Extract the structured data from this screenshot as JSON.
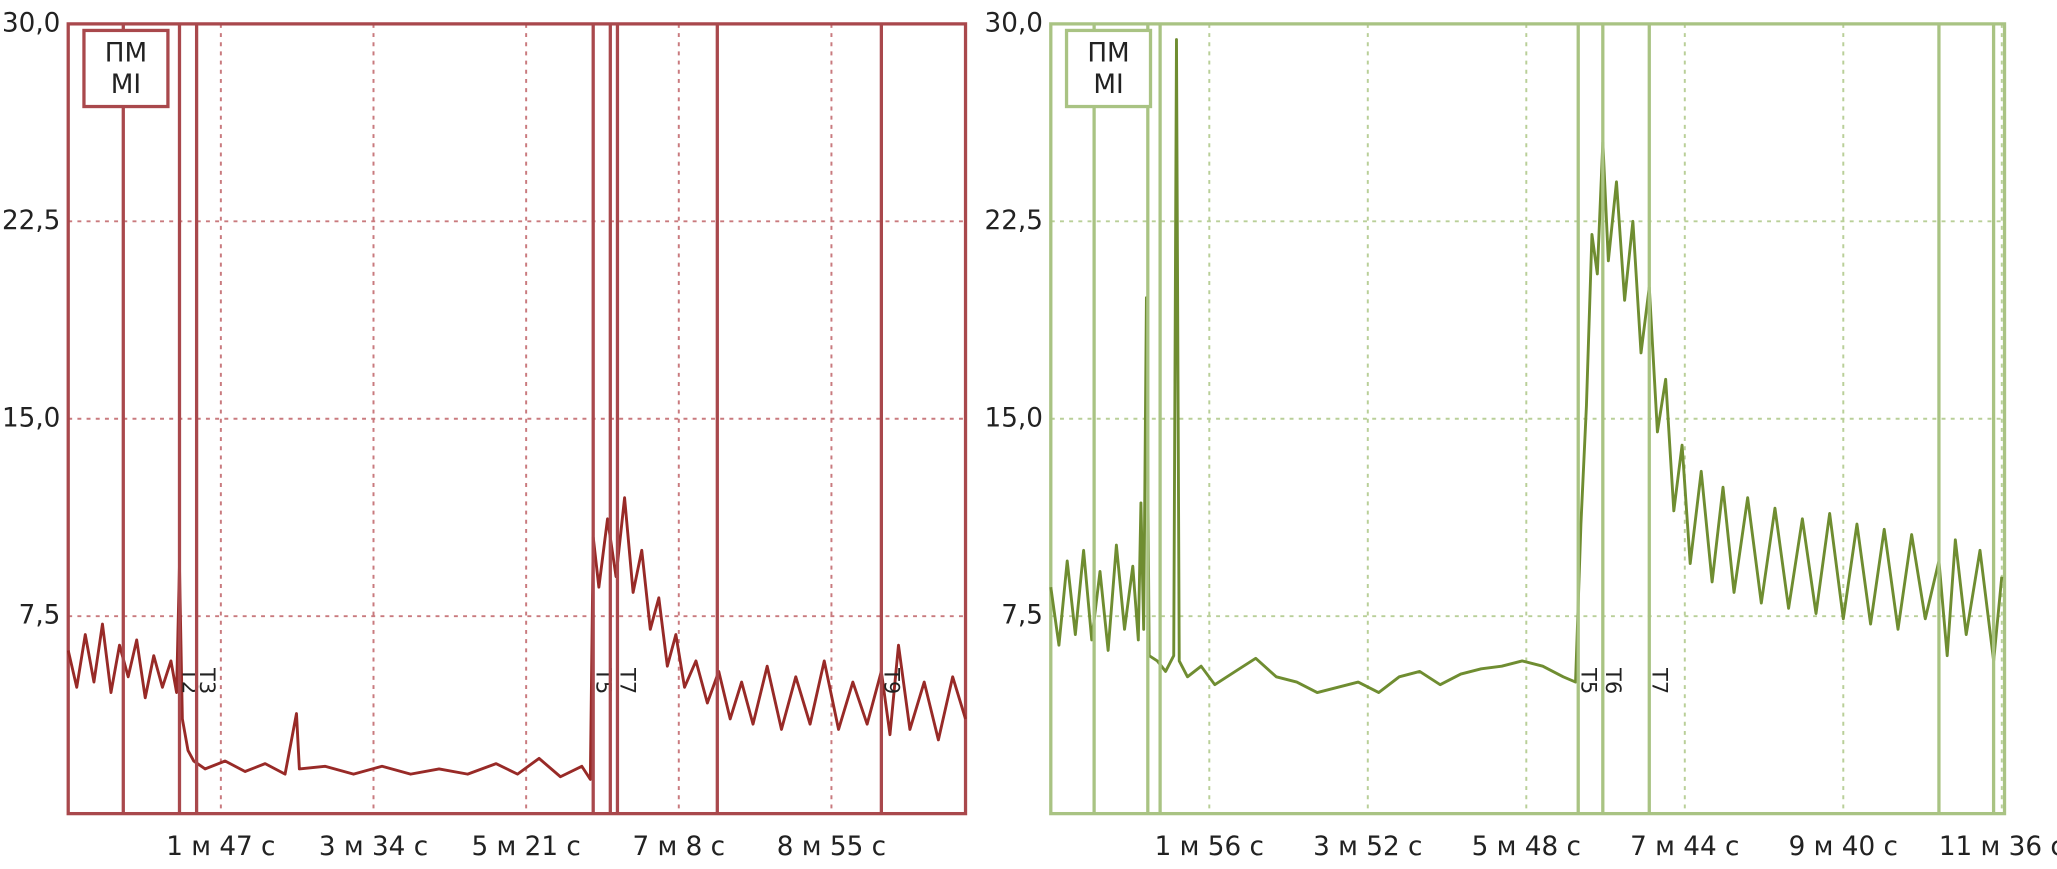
{
  "chart_data": [
    {
      "type": "line",
      "legend": [
        "ПМ",
        "MI"
      ],
      "frame_color": "#a9484c",
      "grid_color": "#c97a7e",
      "xlim": [
        0,
        629
      ],
      "ylim": [
        0,
        30
      ],
      "xticks": [
        {
          "value": 107,
          "label": "1 м 47 с"
        },
        {
          "value": 214,
          "label": "3 м 34 с"
        },
        {
          "value": 321,
          "label": "5 м 21 с"
        },
        {
          "value": 428,
          "label": "7 м 8 с"
        },
        {
          "value": 535,
          "label": "8 м 55 с"
        }
      ],
      "yticks": [
        {
          "value": 7.5,
          "label": "7,5"
        },
        {
          "value": 15,
          "label": "15,0"
        },
        {
          "value": 22.5,
          "label": "22,5"
        },
        {
          "value": 30,
          "label": "30,0"
        }
      ],
      "grid": true,
      "markers": [
        {
          "x": 38.6
        },
        {
          "x": 78,
          "label": "T2"
        },
        {
          "x": 90,
          "label": "T3"
        },
        {
          "x": 368,
          "label": "T5"
        },
        {
          "x": 380
        },
        {
          "x": 385,
          "label": "T7"
        },
        {
          "x": 455
        },
        {
          "x": 570,
          "label": "T9"
        }
      ],
      "x": [
        0,
        6,
        12,
        18,
        24,
        30,
        36,
        42,
        48,
        54,
        60,
        66,
        72,
        76,
        78,
        80,
        84,
        88,
        96,
        110,
        124,
        138,
        152,
        160,
        162,
        180,
        200,
        220,
        240,
        260,
        280,
        300,
        315,
        330,
        345,
        360,
        366,
        368,
        372,
        378,
        384,
        390,
        396,
        402,
        408,
        414,
        420,
        426,
        432,
        440,
        448,
        456,
        464,
        472,
        480,
        490,
        500,
        510,
        520,
        530,
        540,
        550,
        560,
        570,
        576,
        582,
        590,
        600,
        610,
        620,
        629
      ],
      "series": [
        {
          "color": "#982a27",
          "values": [
            6.2,
            4.8,
            6.8,
            5.0,
            7.2,
            4.6,
            6.4,
            5.2,
            6.6,
            4.4,
            6.0,
            4.8,
            5.8,
            4.6,
            9.4,
            3.6,
            2.4,
            2.0,
            1.7,
            2.0,
            1.6,
            1.9,
            1.5,
            3.8,
            1.7,
            1.8,
            1.5,
            1.8,
            1.5,
            1.7,
            1.5,
            1.9,
            1.5,
            2.1,
            1.4,
            1.8,
            1.3,
            10.5,
            8.6,
            11.2,
            9.0,
            12.0,
            8.4,
            10.0,
            7.0,
            8.2,
            5.6,
            6.8,
            4.8,
            5.8,
            4.2,
            5.4,
            3.6,
            5.0,
            3.4,
            5.6,
            3.2,
            5.2,
            3.4,
            5.8,
            3.2,
            5.0,
            3.4,
            5.4,
            3.0,
            6.4,
            3.2,
            5.0,
            2.8,
            5.2,
            3.6
          ]
        }
      ]
    },
    {
      "type": "line",
      "legend": [
        "ПМ",
        "MI"
      ],
      "frame_color": "#a9c383",
      "grid_color": "#b9cf98",
      "xlim": [
        0,
        698
      ],
      "ylim": [
        0,
        30
      ],
      "xticks": [
        {
          "value": 116,
          "label": "1 м 56 с"
        },
        {
          "value": 232,
          "label": "3 м 52 с"
        },
        {
          "value": 348,
          "label": "5 м 48 с"
        },
        {
          "value": 464,
          "label": "7 м 44 с"
        },
        {
          "value": 580,
          "label": "9 м 40 с"
        },
        {
          "value": 696,
          "label": "11 м 36 с"
        }
      ],
      "yticks": [
        {
          "value": 7.5,
          "label": "7,5"
        },
        {
          "value": 15,
          "label": "15,0"
        },
        {
          "value": 22.5,
          "label": "22,5"
        },
        {
          "value": 30,
          "label": "30,0"
        }
      ],
      "grid": true,
      "markers": [
        {
          "x": 31.7
        },
        {
          "x": 71
        },
        {
          "x": 80
        },
        {
          "x": 386,
          "label": "T5"
        },
        {
          "x": 404,
          "label": "T6"
        },
        {
          "x": 438,
          "label": "T7"
        },
        {
          "x": 650
        },
        {
          "x": 690
        }
      ],
      "x": [
        0,
        6,
        12,
        18,
        24,
        30,
        36,
        42,
        48,
        54,
        60,
        64,
        66,
        68,
        70,
        72,
        78,
        84,
        90,
        92,
        94,
        100,
        110,
        120,
        135,
        150,
        165,
        180,
        195,
        210,
        225,
        240,
        255,
        270,
        285,
        300,
        315,
        330,
        345,
        360,
        375,
        384,
        388,
        392,
        396,
        400,
        404,
        408,
        414,
        420,
        426,
        432,
        438,
        444,
        450,
        456,
        462,
        468,
        476,
        484,
        492,
        500,
        510,
        520,
        530,
        540,
        550,
        560,
        570,
        580,
        590,
        600,
        610,
        620,
        630,
        640,
        650,
        656,
        662,
        670,
        680,
        690,
        696
      ],
      "series": [
        {
          "color": "#6f8d31",
          "values": [
            8.6,
            6.4,
            9.6,
            6.8,
            10.0,
            6.6,
            9.2,
            6.2,
            10.2,
            7.0,
            9.4,
            6.6,
            11.8,
            7.0,
            19.6,
            6.0,
            5.8,
            5.4,
            6.0,
            29.4,
            5.8,
            5.2,
            5.6,
            4.9,
            5.4,
            5.9,
            5.2,
            5.0,
            4.6,
            4.8,
            5.0,
            4.6,
            5.2,
            5.4,
            4.9,
            5.3,
            5.5,
            5.6,
            5.8,
            5.6,
            5.2,
            5.0,
            11.0,
            15.5,
            22.0,
            20.5,
            25.5,
            21.0,
            24.0,
            19.5,
            22.5,
            17.5,
            20.0,
            14.5,
            16.5,
            11.5,
            14.0,
            9.5,
            13.0,
            8.8,
            12.4,
            8.4,
            12.0,
            8.0,
            11.6,
            7.8,
            11.2,
            7.6,
            11.4,
            7.4,
            11.0,
            7.2,
            10.8,
            7.0,
            10.6,
            7.4,
            9.6,
            6.0,
            10.4,
            6.8,
            10.0,
            5.8,
            9.0
          ]
        }
      ]
    }
  ]
}
